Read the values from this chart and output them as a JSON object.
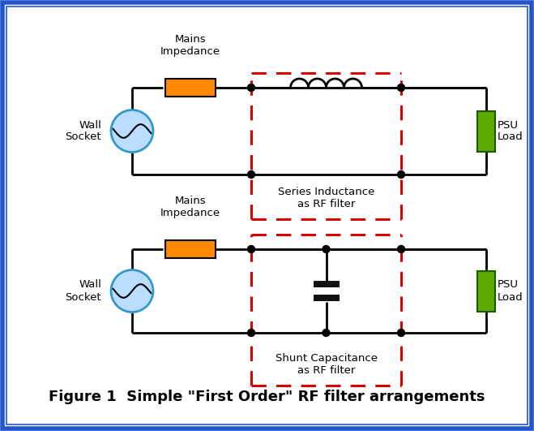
{
  "title": "Figure 1  Simple \"First Order\" RF filter arrangements",
  "bg_color": "#ffffff",
  "border_outer_color": "#2255cc",
  "orange_color": "#ff8800",
  "green_color": "#5aaa00",
  "wire_color": "#000000",
  "dashed_color": "#dd0000",
  "capacitor_color": "#111111",
  "circle_fill": "#bbddff",
  "circle_edge": "#3399cc",
  "label_mains1": "Mains\nImpedance",
  "label_wall1": "Wall\nSocket",
  "label_psu1": "PSU\nLoad",
  "label_series": "Series Inductance\nas RF filter",
  "label_mains2": "Mains\nImpedance",
  "label_wall2": "Wall\nSocket",
  "label_psu2": "PSU\nLoad",
  "label_shunt": "Shunt Capacitance\nas RF filter"
}
